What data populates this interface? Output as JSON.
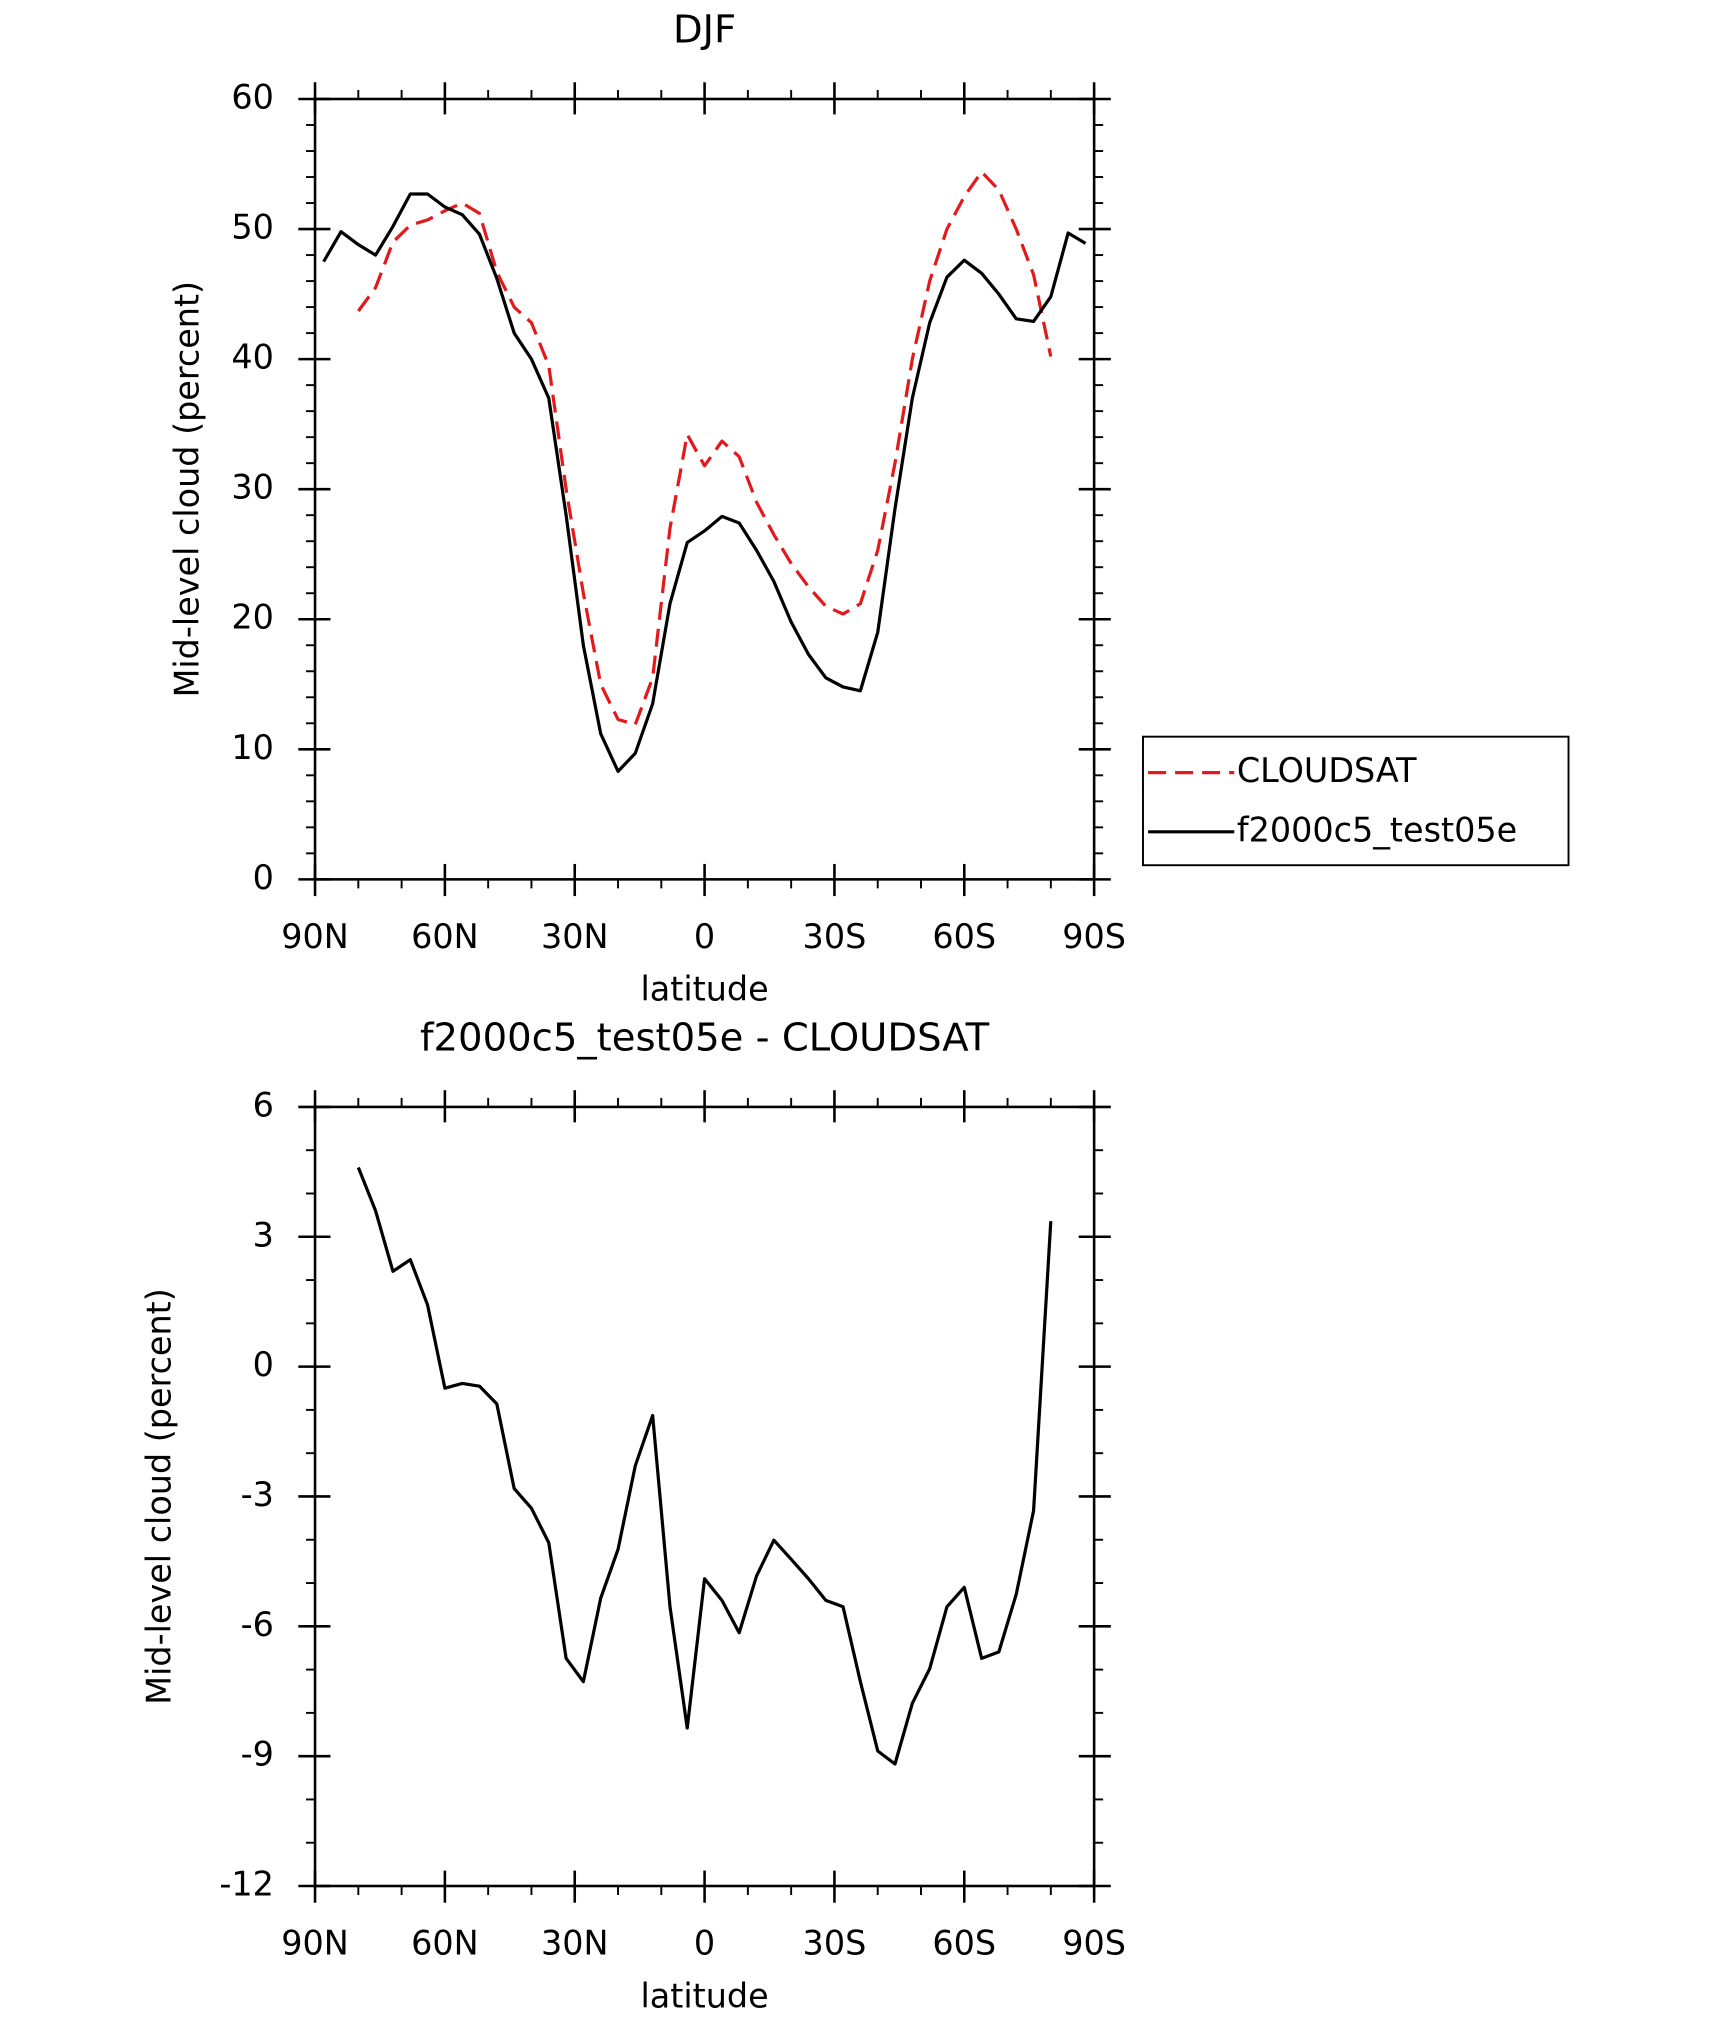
{
  "chart_data": [
    {
      "type": "line",
      "title": "DJF",
      "xlabel": "latitude",
      "ylabel": "Mid-level cloud (percent)",
      "x": [
        88,
        84,
        80,
        76,
        72,
        68,
        64,
        60,
        56,
        52,
        48,
        44,
        40,
        36,
        32,
        28,
        24,
        20,
        16,
        12,
        8,
        4,
        0,
        -4,
        -8,
        -12,
        -16,
        -20,
        -24,
        -28,
        -32,
        -36,
        -40,
        -44,
        -48,
        -52,
        -56,
        -60,
        -64,
        -68,
        -72,
        -76,
        -80,
        -84,
        -88
      ],
      "xlim": [
        90,
        -90
      ],
      "xticks": [
        {
          "value": 90,
          "label": "90N"
        },
        {
          "value": 60,
          "label": "60N"
        },
        {
          "value": 30,
          "label": "30N"
        },
        0,
        {
          "value": -30,
          "label": "30S"
        },
        {
          "value": -60,
          "label": "60S"
        },
        {
          "value": -90,
          "label": "90S"
        }
      ],
      "ylim": [
        0,
        60
      ],
      "yticks": [
        0,
        10,
        20,
        30,
        40,
        50,
        60
      ],
      "legend": "right",
      "series": [
        {
          "name": "CLOUDSAT",
          "color": "#e31a1c",
          "dashed": true,
          "values": [
            null,
            null,
            43.7,
            45.5,
            49.0,
            50.3,
            50.7,
            51.4,
            52.0,
            51.2,
            46.7,
            44.0,
            42.8,
            39.5,
            30.0,
            22.0,
            15.0,
            12.3,
            11.9,
            15.5,
            27.0,
            34.2,
            31.8,
            33.7,
            32.5,
            29.0,
            26.5,
            24.3,
            22.5,
            21.0,
            20.4,
            21.2,
            25.3,
            32.0,
            40.0,
            46.0,
            50.0,
            52.5,
            54.4,
            53.0,
            50.0,
            46.5,
            40.2,
            null,
            null
          ]
        },
        {
          "name": "f2000c5_test05e",
          "color": "#000000",
          "dashed": false,
          "values": [
            47.5,
            49.8,
            48.8,
            48.0,
            50.2,
            52.7,
            52.7,
            51.7,
            51.1,
            49.6,
            46.2,
            42.0,
            40.0,
            37.0,
            28.0,
            18.0,
            11.2,
            8.3,
            9.7,
            13.5,
            21.2,
            25.9,
            26.8,
            27.9,
            27.4,
            25.3,
            22.9,
            19.8,
            17.3,
            15.5,
            14.8,
            14.5,
            19.0,
            28.5,
            37.0,
            42.8,
            46.3,
            47.6,
            46.6,
            45.0,
            43.1,
            42.9,
            44.8,
            49.7,
            48.9
          ]
        }
      ]
    },
    {
      "type": "line",
      "title": "f2000c5_test05e - CLOUDSAT",
      "xlabel": "latitude",
      "ylabel": "Mid-level cloud (percent)",
      "x": [
        80,
        76,
        72,
        68,
        64,
        60,
        56,
        52,
        48,
        44,
        40,
        36,
        32,
        28,
        24,
        20,
        16,
        12,
        8,
        4,
        0,
        -4,
        -8,
        -12,
        -16,
        -20,
        -24,
        -28,
        -32,
        -36,
        -40,
        -44,
        -48,
        -52,
        -56,
        -60,
        -64,
        -68,
        -72,
        -76,
        -80
      ],
      "xlim": [
        90,
        -90
      ],
      "xticks": [
        {
          "value": 90,
          "label": "90N"
        },
        {
          "value": 60,
          "label": "60N"
        },
        {
          "value": 30,
          "label": "30N"
        },
        0,
        {
          "value": -30,
          "label": "30S"
        },
        {
          "value": -60,
          "label": "60S"
        },
        {
          "value": -90,
          "label": "90S"
        }
      ],
      "ylim": [
        -12,
        6
      ],
      "yticks": [
        -12,
        -9,
        -6,
        -3,
        0,
        3,
        6
      ],
      "series": [
        {
          "color": "#000000",
          "dashed": false,
          "values": [
            4.6,
            3.6,
            2.2,
            2.47,
            1.43,
            -0.5,
            -0.39,
            -0.45,
            -0.86,
            -2.82,
            -3.27,
            -4.07,
            -6.74,
            -7.28,
            -5.35,
            -4.22,
            -2.29,
            -1.13,
            -5.55,
            -8.35,
            -4.9,
            -5.4,
            -6.15,
            -4.84,
            -4.01,
            -4.45,
            -4.9,
            -5.4,
            -5.55,
            -7.28,
            -8.88,
            -9.18,
            -7.78,
            -6.98,
            -5.55,
            -5.1,
            -6.74,
            -6.59,
            -5.26,
            -3.33,
            3.36
          ]
        }
      ]
    }
  ]
}
